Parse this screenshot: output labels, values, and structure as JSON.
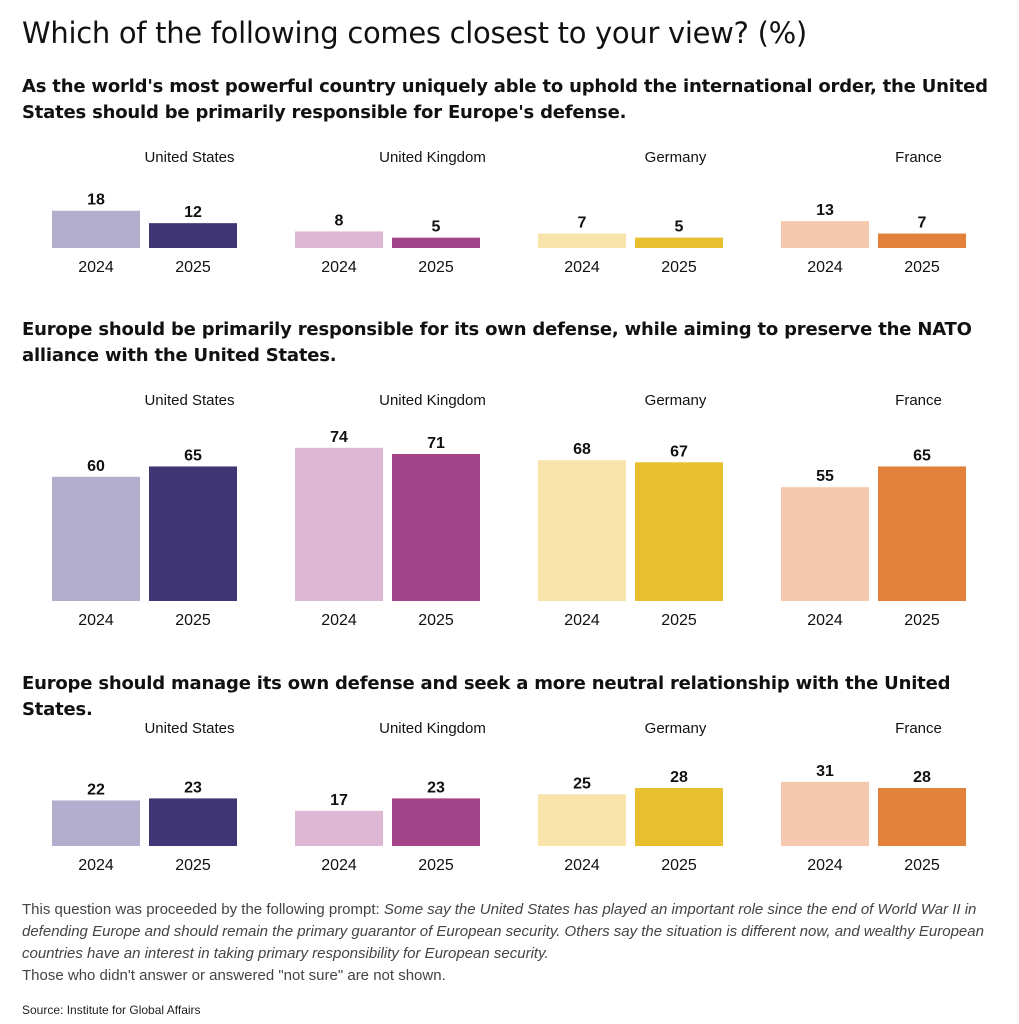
{
  "title": "Which of the following comes closest to your view? (%)",
  "footnote": {
    "intro": "This question was proceeded by the following prompt: ",
    "prompt": "Some say the United States has played an important role since the end of World War II in defending Europe and should remain the primary guarantor of European security. Others say the situation is different now, and wealthy European countries have an interest in taking primary responsibility for European security.",
    "note": "Those who didn't answer or answered \"not sure\" are not shown."
  },
  "source": "Source: Institute for Global Affairs",
  "colors": {
    "United States": [
      "#b3aecd",
      "#403675"
    ],
    "United Kingdom": [
      "#ddb7d4",
      "#a44488"
    ],
    "Germany": [
      "#f8e4aa",
      "#e8bf2e"
    ],
    "France": [
      "#f4c9ad",
      "#e2823a"
    ]
  },
  "chart_data": [
    {
      "type": "bar",
      "title": "As the world's most powerful country uniquely able to uphold the international order, the United States should be primarily responsible for Europe's defense.",
      "groups": [
        "United States",
        "United Kingdom",
        "Germany",
        "France"
      ],
      "categories": [
        "2024",
        "2025"
      ],
      "values": [
        [
          18,
          12
        ],
        [
          8,
          5
        ],
        [
          7,
          5
        ],
        [
          13,
          7
        ]
      ]
    },
    {
      "type": "bar",
      "title": "Europe should be primarily responsible for its own defense, while aiming to preserve the NATO alliance with the United States.",
      "groups": [
        "United States",
        "United Kingdom",
        "Germany",
        "France"
      ],
      "categories": [
        "2024",
        "2025"
      ],
      "values": [
        [
          60,
          65
        ],
        [
          74,
          71
        ],
        [
          68,
          67
        ],
        [
          55,
          65
        ]
      ]
    },
    {
      "type": "bar",
      "title": "Europe should manage its own defense and seek a more neutral relationship with the United States.",
      "groups": [
        "United States",
        "United Kingdom",
        "Germany",
        "France"
      ],
      "categories": [
        "2024",
        "2025"
      ],
      "values": [
        [
          22,
          23
        ],
        [
          17,
          23
        ],
        [
          25,
          28
        ],
        [
          31,
          28
        ]
      ]
    }
  ]
}
